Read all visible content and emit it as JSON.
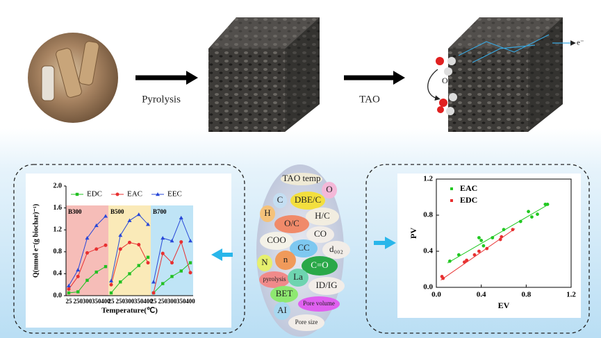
{
  "process": {
    "step1": "Pyrolysis",
    "step2": "TAO",
    "oxygen": "O₂",
    "electron": "e⁻"
  },
  "features": [
    {
      "label": "TAO temp",
      "color": "#efead6"
    },
    {
      "label": "O",
      "color": "#f4b8d8"
    },
    {
      "label": "C",
      "color": "#c4def2"
    },
    {
      "label": "DBE/C",
      "color": "#f3df3e"
    },
    {
      "label": "H",
      "color": "#f5c27a"
    },
    {
      "label": "H/C",
      "color": "#f2ede0"
    },
    {
      "label": "O/C",
      "color": "#f08a6a"
    },
    {
      "label": "CO",
      "color": "#f2ede8"
    },
    {
      "label": "COO",
      "color": "#f4f2e8"
    },
    {
      "label": "CC",
      "color": "#7ec8f0"
    },
    {
      "label": "d₀₀₂",
      "color": "#f2ede8"
    },
    {
      "label": "N",
      "color": "#e6f06e"
    },
    {
      "label": "n",
      "color": "#f09a5a"
    },
    {
      "label": "C=O",
      "color": "#2aa848"
    },
    {
      "label": "pyrolysis",
      "color": "#f08a8a"
    },
    {
      "label": "La",
      "color": "#6ed4b0"
    },
    {
      "label": "ID/IG",
      "color": "#f2ede8"
    },
    {
      "label": "BET",
      "color": "#8ee870"
    },
    {
      "label": "Pore volume",
      "color": "#e060f0"
    },
    {
      "label": "AI",
      "color": "#a8d8f0"
    },
    {
      "label": "Pore size",
      "color": "#f2ede8"
    }
  ],
  "chart_data": [
    {
      "type": "line",
      "ylabel": "Q(mmol e⁻(g biochar)⁻¹)",
      "xlabel": "Temperature(℃)",
      "ylim": [
        0,
        2.0
      ],
      "yticks": [
        {
          "value": 0,
          "label": "0.0"
        },
        {
          "value": 0.4,
          "label": "0.4"
        },
        {
          "value": 0.8,
          "label": "0.8"
        },
        {
          "value": 1.2,
          "label": "1.2"
        },
        {
          "value": 1.6,
          "label": "1.6"
        },
        {
          "value": 2.0,
          "label": "2.0"
        }
      ],
      "panels": [
        {
          "label": "B300",
          "color": "#f6bdb8",
          "categories": [
            "25",
            "250",
            "300",
            "350",
            "400"
          ]
        },
        {
          "label": "B500",
          "color": "#faeab8",
          "categories": [
            "25",
            "250",
            "300",
            "350",
            "400"
          ]
        },
        {
          "label": "B700",
          "color": "#bfe4f6",
          "categories": [
            "25",
            "250",
            "300",
            "350",
            "400"
          ]
        }
      ],
      "series": [
        {
          "name": "EDC",
          "color": "#22c022",
          "marker": "square",
          "values": [
            0.05,
            0.07,
            0.28,
            0.43,
            0.53,
            0.05,
            0.25,
            0.4,
            0.55,
            0.7,
            0.05,
            0.22,
            0.35,
            0.45,
            0.6
          ]
        },
        {
          "name": "EAC",
          "color": "#e83030",
          "marker": "circle",
          "values": [
            0.12,
            0.35,
            0.78,
            0.85,
            0.92,
            0.2,
            0.85,
            0.97,
            0.93,
            0.6,
            0.05,
            0.77,
            0.6,
            0.98,
            0.42
          ]
        },
        {
          "name": "EEC",
          "color": "#2848d8",
          "marker": "triangle",
          "values": [
            0.18,
            0.47,
            1.05,
            1.28,
            1.45,
            0.27,
            1.1,
            1.37,
            1.48,
            1.3,
            0.25,
            1.05,
            1.0,
            1.42,
            1.0
          ]
        }
      ]
    },
    {
      "type": "scatter",
      "xlabel": "EV",
      "ylabel": "PV",
      "xlim": [
        0,
        1.2
      ],
      "ylim": [
        0,
        1.2
      ],
      "xticks": [
        {
          "value": 0,
          "label": "0.0"
        },
        {
          "value": 0.4,
          "label": "0.4"
        },
        {
          "value": 0.8,
          "label": "0.8"
        },
        {
          "value": 1.2,
          "label": "1.2"
        }
      ],
      "yticks": [
        {
          "value": 0,
          "label": "0.0"
        },
        {
          "value": 0.4,
          "label": "0.4"
        },
        {
          "value": 0.8,
          "label": "0.8"
        },
        {
          "value": 1.2,
          "label": "1.2"
        }
      ],
      "series": [
        {
          "name": "EAC",
          "color": "#22c822",
          "x": [
            0.12,
            0.2,
            0.38,
            0.4,
            0.42,
            0.5,
            0.6,
            0.75,
            0.82,
            0.85,
            0.9,
            0.97,
            0.99
          ],
          "values": [
            0.29,
            0.36,
            0.55,
            0.52,
            0.46,
            0.55,
            0.64,
            0.73,
            0.84,
            0.78,
            0.81,
            0.92,
            0.92
          ],
          "fit": {
            "x": [
              0.1,
              1.0
            ],
            "y": [
              0.27,
              0.92
            ]
          }
        },
        {
          "name": "EDC",
          "color": "#e83030",
          "x": [
            0.05,
            0.06,
            0.25,
            0.27,
            0.34,
            0.38,
            0.45,
            0.57,
            0.58,
            0.68
          ],
          "values": [
            0.12,
            0.1,
            0.28,
            0.3,
            0.36,
            0.4,
            0.43,
            0.53,
            0.56,
            0.64
          ],
          "fit": {
            "x": [
              0.04,
              0.7
            ],
            "y": [
              0.08,
              0.65
            ]
          }
        }
      ]
    }
  ]
}
